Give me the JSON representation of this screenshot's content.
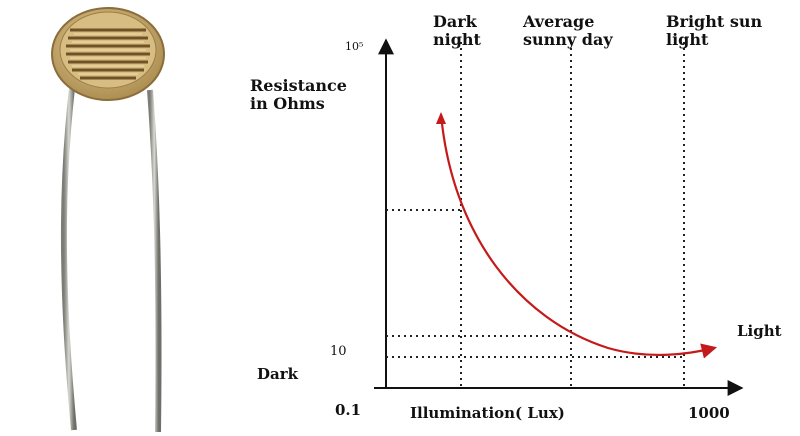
{
  "diagram": {
    "ylabel": "Resistance\nin Ohms",
    "xlabel": "Illumination( Lux)",
    "y_top_tick": "10⁵",
    "y_low_tick": "10",
    "dark_label": "Dark",
    "light_label": "Light",
    "x_min_label": "0.1",
    "x_max_label": "1000",
    "regions": [
      {
        "label": "Dark\nnight"
      },
      {
        "label": "Average\nsunny day"
      },
      {
        "label": "Bright sun\nlight"
      }
    ],
    "colors": {
      "curve": "#c41a1a",
      "axes": "#111111",
      "guides": "#222222",
      "ldr_body": "#c9a96a",
      "ldr_track": "#7a5a2a",
      "leads": "#9a9a94"
    }
  }
}
